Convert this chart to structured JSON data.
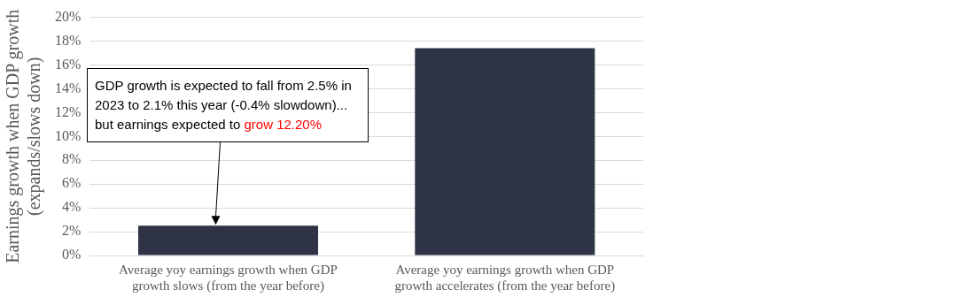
{
  "chart_data": {
    "type": "bar",
    "ylabel": "Earnings growth when GDP growth (expands/slows down)",
    "categories": [
      "Average yoy earnings growth when GDP growth slows (from the year before)",
      "Average yoy earnings growth when GDP growth accelerates (from the year before)"
    ],
    "values": [
      2.5,
      17.4
    ],
    "color": "#2e3445",
    "ylim": [
      0,
      20
    ],
    "yticks": [
      {
        "value": 0,
        "label": "0%"
      },
      {
        "value": 2,
        "label": "2%"
      },
      {
        "value": 4,
        "label": "4%"
      },
      {
        "value": 6,
        "label": "6%"
      },
      {
        "value": 8,
        "label": "8%"
      },
      {
        "value": 10,
        "label": "10%"
      },
      {
        "value": 12,
        "label": "12%"
      },
      {
        "value": 14,
        "label": "14%"
      },
      {
        "value": 16,
        "label": "16%"
      },
      {
        "value": 18,
        "label": "18%"
      },
      {
        "value": 20,
        "label": "20%"
      }
    ],
    "grid": "y",
    "legend": false,
    "annotations": [
      "GDP growth is expected to fall from 2.5% in 2023 to 2.1% this year (-0.4% slowdown)... but earnings expected to",
      "grow 12.20%"
    ]
  }
}
